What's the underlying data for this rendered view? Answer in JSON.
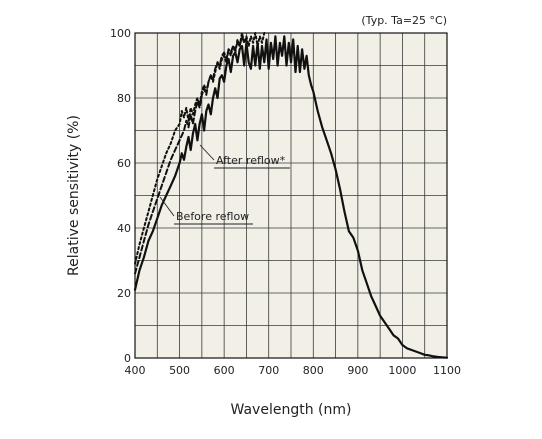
{
  "chart_data": {
    "type": "line",
    "note": "(Typ. Ta=25 °C)",
    "xlabel": "Wavelength (nm)",
    "ylabel": "Relative sensitivity (%)",
    "xlim": [
      400,
      1100
    ],
    "ylim": [
      0,
      100
    ],
    "xticks": [
      400,
      500,
      600,
      700,
      800,
      900,
      1000,
      1100
    ],
    "yticks": [
      0,
      20,
      40,
      60,
      80,
      100
    ],
    "grid": true,
    "colors": {
      "plot_bg": "#f1efe6",
      "grid": "#3a3a3a",
      "line": "#111111"
    },
    "annotations": [
      {
        "text": "After reflow*",
        "series": 1
      },
      {
        "text": "Before reflow",
        "series": 0
      }
    ],
    "series": [
      {
        "style": "solid",
        "points": [
          [
            400,
            21
          ],
          [
            410,
            27
          ],
          [
            420,
            31
          ],
          [
            430,
            36
          ],
          [
            440,
            39
          ],
          [
            450,
            43
          ],
          [
            460,
            47
          ],
          [
            470,
            50
          ],
          [
            480,
            53
          ],
          [
            490,
            56
          ],
          [
            500,
            60
          ],
          [
            505,
            63
          ],
          [
            510,
            61
          ],
          [
            515,
            65
          ],
          [
            520,
            68
          ],
          [
            525,
            64
          ],
          [
            530,
            69
          ],
          [
            535,
            72
          ],
          [
            540,
            67
          ],
          [
            545,
            72
          ],
          [
            550,
            75
          ],
          [
            555,
            70
          ],
          [
            560,
            76
          ],
          [
            565,
            78
          ],
          [
            570,
            75
          ],
          [
            575,
            80
          ],
          [
            580,
            83
          ],
          [
            585,
            80
          ],
          [
            590,
            86
          ],
          [
            595,
            87
          ],
          [
            600,
            85
          ],
          [
            605,
            90
          ],
          [
            610,
            92
          ],
          [
            615,
            88
          ],
          [
            620,
            93
          ],
          [
            625,
            94
          ],
          [
            630,
            91
          ],
          [
            635,
            95
          ],
          [
            640,
            96
          ],
          [
            645,
            90
          ],
          [
            650,
            97
          ],
          [
            655,
            91
          ],
          [
            660,
            89
          ],
          [
            665,
            96
          ],
          [
            670,
            90
          ],
          [
            675,
            97
          ],
          [
            680,
            89
          ],
          [
            685,
            96
          ],
          [
            690,
            91
          ],
          [
            695,
            98
          ],
          [
            700,
            89
          ],
          [
            705,
            97
          ],
          [
            710,
            92
          ],
          [
            715,
            99
          ],
          [
            720,
            90
          ],
          [
            725,
            97
          ],
          [
            730,
            93
          ],
          [
            735,
            99
          ],
          [
            740,
            90
          ],
          [
            745,
            97
          ],
          [
            750,
            91
          ],
          [
            755,
            98
          ],
          [
            760,
            88
          ],
          [
            765,
            96
          ],
          [
            770,
            88
          ],
          [
            775,
            95
          ],
          [
            780,
            89
          ],
          [
            785,
            93
          ],
          [
            790,
            87
          ],
          [
            795,
            84
          ],
          [
            800,
            82
          ],
          [
            810,
            76
          ],
          [
            820,
            71
          ],
          [
            830,
            67
          ],
          [
            840,
            63
          ],
          [
            850,
            58
          ],
          [
            860,
            52
          ],
          [
            870,
            45
          ],
          [
            875,
            42
          ],
          [
            880,
            39
          ],
          [
            890,
            37
          ],
          [
            900,
            33
          ],
          [
            910,
            27
          ],
          [
            920,
            23
          ],
          [
            930,
            19
          ],
          [
            940,
            16
          ],
          [
            950,
            13
          ],
          [
            960,
            11
          ],
          [
            970,
            9
          ],
          [
            980,
            7
          ],
          [
            990,
            6
          ],
          [
            1000,
            4
          ],
          [
            1010,
            3
          ],
          [
            1020,
            2.5
          ],
          [
            1030,
            2
          ],
          [
            1040,
            1.5
          ],
          [
            1050,
            1
          ],
          [
            1060,
            0.8
          ],
          [
            1070,
            0.5
          ],
          [
            1080,
            0.3
          ],
          [
            1090,
            0.2
          ],
          [
            1100,
            0.1
          ]
        ]
      },
      {
        "style": "dotted",
        "points": [
          [
            400,
            29
          ],
          [
            410,
            35
          ],
          [
            420,
            40
          ],
          [
            430,
            45
          ],
          [
            440,
            50
          ],
          [
            450,
            55
          ],
          [
            460,
            59
          ],
          [
            470,
            63
          ],
          [
            480,
            66
          ],
          [
            490,
            70
          ],
          [
            500,
            72
          ],
          [
            505,
            76
          ],
          [
            510,
            74
          ],
          [
            515,
            77
          ],
          [
            520,
            73
          ],
          [
            525,
            77
          ],
          [
            530,
            75
          ],
          [
            535,
            78
          ],
          [
            540,
            80
          ],
          [
            545,
            78
          ],
          [
            550,
            82
          ],
          [
            555,
            84
          ],
          [
            560,
            82
          ],
          [
            565,
            85
          ],
          [
            570,
            87
          ],
          [
            575,
            85
          ],
          [
            580,
            88
          ],
          [
            585,
            91
          ],
          [
            590,
            89
          ],
          [
            595,
            92
          ],
          [
            600,
            93
          ],
          [
            605,
            91
          ],
          [
            610,
            95
          ],
          [
            615,
            93
          ],
          [
            620,
            96
          ],
          [
            625,
            94
          ],
          [
            630,
            98
          ],
          [
            635,
            96
          ],
          [
            640,
            100
          ],
          [
            645,
            97
          ],
          [
            650,
            99
          ],
          [
            655,
            96
          ],
          [
            660,
            99
          ],
          [
            665,
            97
          ],
          [
            670,
            100
          ],
          [
            675,
            96
          ],
          [
            680,
            99
          ],
          [
            685,
            97
          ],
          [
            690,
            100
          ]
        ]
      },
      {
        "style": "dashed",
        "points": [
          [
            400,
            26
          ],
          [
            410,
            31
          ],
          [
            420,
            36
          ],
          [
            430,
            41
          ],
          [
            440,
            45
          ],
          [
            450,
            49
          ],
          [
            460,
            53
          ],
          [
            470,
            57
          ],
          [
            480,
            61
          ],
          [
            490,
            64
          ],
          [
            500,
            67
          ],
          [
            510,
            70
          ],
          [
            515,
            73
          ],
          [
            520,
            71
          ],
          [
            525,
            75
          ],
          [
            530,
            72
          ],
          [
            535,
            76
          ],
          [
            540,
            79
          ],
          [
            545,
            77
          ],
          [
            550,
            81
          ],
          [
            555,
            83
          ],
          [
            560,
            81
          ],
          [
            565,
            85
          ],
          [
            570,
            87
          ],
          [
            575,
            86
          ],
          [
            580,
            89
          ],
          [
            585,
            91
          ],
          [
            590,
            90
          ],
          [
            595,
            93
          ],
          [
            600,
            94
          ],
          [
            605,
            92
          ],
          [
            610,
            95
          ],
          [
            615,
            94
          ],
          [
            620,
            96
          ],
          [
            625,
            95
          ],
          [
            630,
            97
          ],
          [
            635,
            96
          ],
          [
            640,
            99
          ],
          [
            645,
            97
          ],
          [
            650,
            98
          ]
        ]
      }
    ]
  }
}
